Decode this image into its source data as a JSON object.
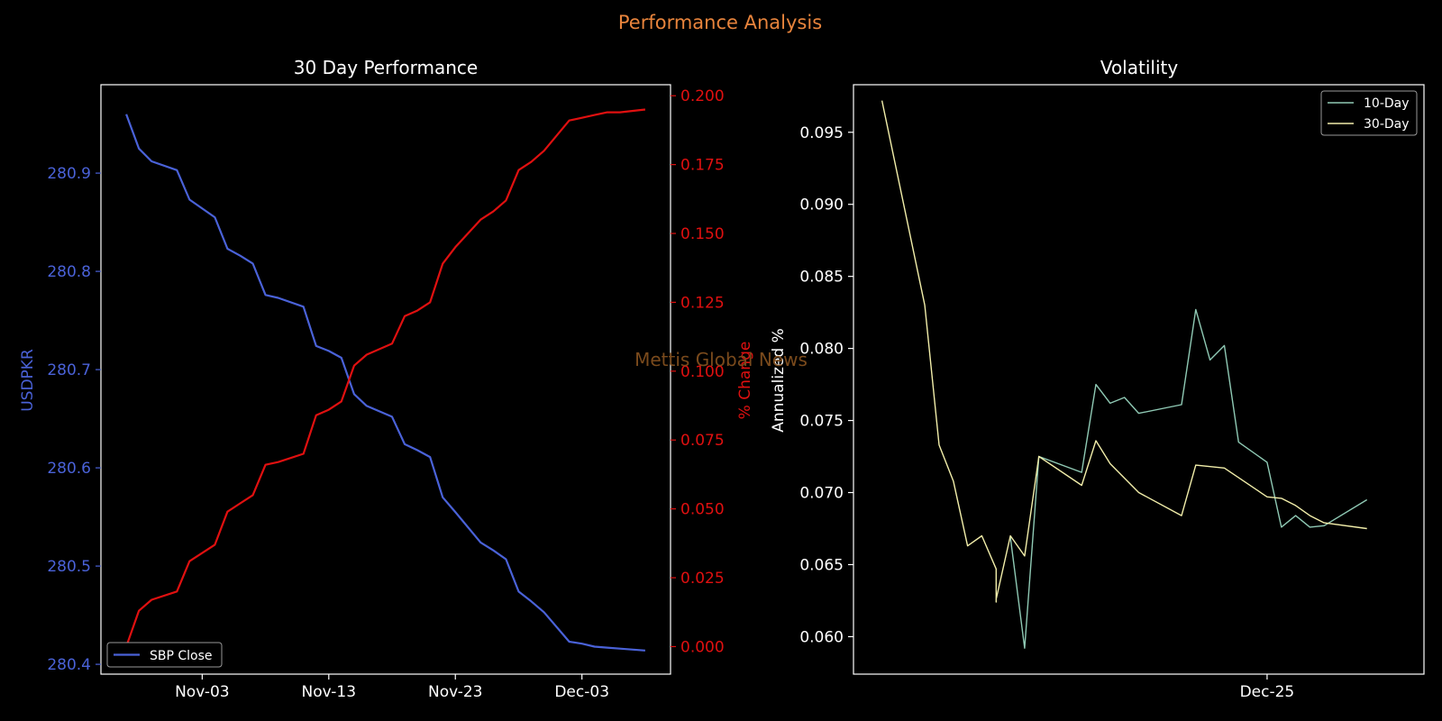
{
  "page": {
    "suptitle": "Performance Analysis",
    "watermark": "Mettis Global News",
    "colors": {
      "background": "#000000",
      "suptitle": "#e8843c",
      "price": "#4a62d8",
      "pct": "#e01010",
      "vol10": "#8fc9b4",
      "vol30": "#f2eeaa",
      "watermark": "#7a4a1c",
      "axes": "#ffffff"
    }
  },
  "chart_data": [
    {
      "type": "line",
      "title": "30 Day Performance",
      "xlabel": "",
      "ylabel": "USDPKR",
      "y2label": "% Change",
      "xlim": [
        "2024-10-26",
        "2024-12-10"
      ],
      "ylim": [
        280.39,
        280.99
      ],
      "y2lim": [
        -0.01,
        0.204
      ],
      "xticks": [
        {
          "date": "2024-11-03",
          "label": "Nov-03"
        },
        {
          "date": "2024-11-13",
          "label": "Nov-13"
        },
        {
          "date": "2024-11-23",
          "label": "Nov-23"
        },
        {
          "date": "2024-12-03",
          "label": "Dec-03"
        }
      ],
      "yticks": [
        "280.4",
        "280.5",
        "280.6",
        "280.7",
        "280.8",
        "280.9"
      ],
      "y2ticks": [
        "0.000",
        "0.025",
        "0.050",
        "0.075",
        "0.100",
        "0.125",
        "0.150",
        "0.175",
        "0.200"
      ],
      "legend": {
        "position": "lower-left",
        "entries": [
          "SBP Close"
        ]
      },
      "grid": false,
      "dates": [
        "2024-10-28",
        "2024-10-29",
        "2024-10-30",
        "2024-11-01",
        "2024-11-02",
        "2024-11-04",
        "2024-11-05",
        "2024-11-06",
        "2024-11-07",
        "2024-11-08",
        "2024-11-09",
        "2024-11-11",
        "2024-11-12",
        "2024-11-13",
        "2024-11-14",
        "2024-11-15",
        "2024-11-16",
        "2024-11-18",
        "2024-11-19",
        "2024-11-20",
        "2024-11-21",
        "2024-11-22",
        "2024-11-23",
        "2024-11-25",
        "2024-11-26",
        "2024-11-27",
        "2024-11-28",
        "2024-11-29",
        "2024-11-30",
        "2024-12-02",
        "2024-12-03",
        "2024-12-04",
        "2024-12-05",
        "2024-12-06",
        "2024-12-08"
      ],
      "series": [
        {
          "name": "SBP Close",
          "axis": "left",
          "values": [
            280.96,
            280.925,
            280.912,
            280.903,
            280.873,
            280.855,
            280.823,
            280.816,
            280.808,
            280.776,
            280.773,
            280.764,
            280.724,
            280.719,
            280.712,
            280.675,
            280.663,
            280.652,
            280.624,
            280.618,
            280.611,
            280.57,
            280.555,
            280.524,
            280.516,
            280.507,
            280.474,
            280.464,
            280.453,
            280.423,
            280.421,
            280.418,
            280.417,
            280.416,
            280.414
          ]
        },
        {
          "axis": "right",
          "values": [
            0.0,
            0.013,
            0.017,
            0.02,
            0.031,
            0.037,
            0.049,
            0.052,
            0.055,
            0.066,
            0.067,
            0.07,
            0.084,
            0.086,
            0.089,
            0.102,
            0.106,
            0.11,
            0.12,
            0.122,
            0.125,
            0.139,
            0.145,
            0.155,
            0.158,
            0.162,
            0.173,
            0.176,
            0.18,
            0.191,
            0.192,
            0.193,
            0.194,
            0.194,
            0.195
          ]
        }
      ]
    },
    {
      "type": "line",
      "title": "Volatility",
      "xlabel": "",
      "ylabel": "Annualized %",
      "xlim": [
        "2024-11-26",
        "2025-01-05"
      ],
      "ylim": [
        0.0574,
        0.0983
      ],
      "xticks": [
        {
          "date": "2024-12-25",
          "label": "Dec-25"
        }
      ],
      "yticks": [
        "0.060",
        "0.065",
        "0.070",
        "0.075",
        "0.080",
        "0.085",
        "0.090",
        "0.095"
      ],
      "legend": {
        "position": "top-right",
        "entries": [
          "10-Day",
          "30-Day"
        ]
      },
      "grid": false,
      "series": [
        {
          "name": "10-Day",
          "points": [
            [
              "2024-12-07",
              0.0669
            ],
            [
              "2024-12-08",
              0.0592
            ],
            [
              "2024-12-09",
              0.0725
            ],
            [
              "2024-12-12",
              0.0714
            ],
            [
              "2024-12-13",
              0.0775
            ],
            [
              "2024-12-14",
              0.0762
            ],
            [
              "2024-12-15",
              0.0766
            ],
            [
              "2024-12-16",
              0.0755
            ],
            [
              "2024-12-19",
              0.0761
            ],
            [
              "2024-12-20",
              0.0827
            ],
            [
              "2024-12-21",
              0.0792
            ],
            [
              "2024-12-22",
              0.0802
            ],
            [
              "2024-12-23",
              0.0735
            ],
            [
              "2024-12-25",
              0.0721
            ],
            [
              "2024-12-26",
              0.0676
            ],
            [
              "2024-12-27",
              0.0684
            ],
            [
              "2024-12-28",
              0.0676
            ],
            [
              "2024-12-29",
              0.0677
            ],
            [
              "2025-01-01",
              0.0695
            ]
          ]
        },
        {
          "name": "30-Day",
          "points": [
            [
              "2024-11-28",
              0.0972
            ],
            [
              "2024-12-01",
              0.083
            ],
            [
              "2024-12-02",
              0.0733
            ],
            [
              "2024-12-03",
              0.0708
            ],
            [
              "2024-12-04",
              0.0663
            ],
            [
              "2024-12-05",
              0.067
            ],
            [
              "2024-12-06",
              0.0647
            ],
            [
              "2024-12-06",
              0.0624
            ],
            [
              "2024-12-06",
              0.0626
            ],
            [
              "2024-12-07",
              0.067
            ],
            [
              "2024-12-08",
              0.0656
            ],
            [
              "2024-12-09",
              0.0725
            ],
            [
              "2024-12-12",
              0.0705
            ],
            [
              "2024-12-13",
              0.0736
            ],
            [
              "2024-12-14",
              0.072
            ],
            [
              "2024-12-16",
              0.07
            ],
            [
              "2024-12-19",
              0.0684
            ],
            [
              "2024-12-20",
              0.0719
            ],
            [
              "2024-12-22",
              0.0717
            ],
            [
              "2024-12-25",
              0.0697
            ],
            [
              "2024-12-26",
              0.0696
            ],
            [
              "2024-12-27",
              0.0691
            ],
            [
              "2024-12-28",
              0.0684
            ],
            [
              "2024-12-29",
              0.0679
            ],
            [
              "2025-01-01",
              0.0675
            ]
          ]
        }
      ]
    }
  ]
}
